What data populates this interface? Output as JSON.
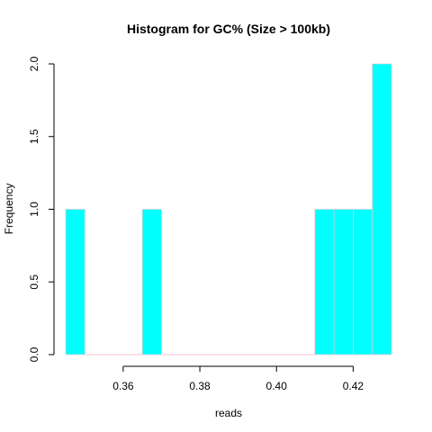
{
  "chart_data": {
    "type": "bar",
    "title": "Histogram for GC% (Size > 100kb)",
    "xlabel": "reads",
    "ylabel": "Frequency",
    "xlim": [
      0.345,
      0.43
    ],
    "ylim": [
      0,
      2
    ],
    "bin_width": 0.005,
    "bins": [
      {
        "start": 0.345,
        "end": 0.35,
        "count": 1
      },
      {
        "start": 0.35,
        "end": 0.355,
        "count": 0
      },
      {
        "start": 0.355,
        "end": 0.36,
        "count": 0
      },
      {
        "start": 0.36,
        "end": 0.365,
        "count": 0
      },
      {
        "start": 0.365,
        "end": 0.37,
        "count": 1
      },
      {
        "start": 0.37,
        "end": 0.375,
        "count": 0
      },
      {
        "start": 0.375,
        "end": 0.38,
        "count": 0
      },
      {
        "start": 0.38,
        "end": 0.385,
        "count": 0
      },
      {
        "start": 0.385,
        "end": 0.39,
        "count": 0
      },
      {
        "start": 0.39,
        "end": 0.395,
        "count": 0
      },
      {
        "start": 0.395,
        "end": 0.4,
        "count": 0
      },
      {
        "start": 0.4,
        "end": 0.405,
        "count": 0
      },
      {
        "start": 0.405,
        "end": 0.41,
        "count": 0
      },
      {
        "start": 0.41,
        "end": 0.415,
        "count": 1
      },
      {
        "start": 0.415,
        "end": 0.42,
        "count": 1
      },
      {
        "start": 0.42,
        "end": 0.425,
        "count": 1
      },
      {
        "start": 0.425,
        "end": 0.43,
        "count": 2
      }
    ],
    "x_ticks": [
      {
        "value": 0.36,
        "label": "0.36"
      },
      {
        "value": 0.38,
        "label": "0.38"
      },
      {
        "value": 0.4,
        "label": "0.40"
      },
      {
        "value": 0.42,
        "label": "0.42"
      }
    ],
    "y_ticks": [
      {
        "value": 0,
        "label": "0.0"
      },
      {
        "value": 0.5,
        "label": "0.5"
      },
      {
        "value": 1,
        "label": "1.0"
      },
      {
        "value": 1.5,
        "label": "1.5"
      },
      {
        "value": 2,
        "label": "2.0"
      }
    ],
    "bar_color": "#00ffff",
    "bar_border_color": "#ffc0cb",
    "grid": false
  }
}
